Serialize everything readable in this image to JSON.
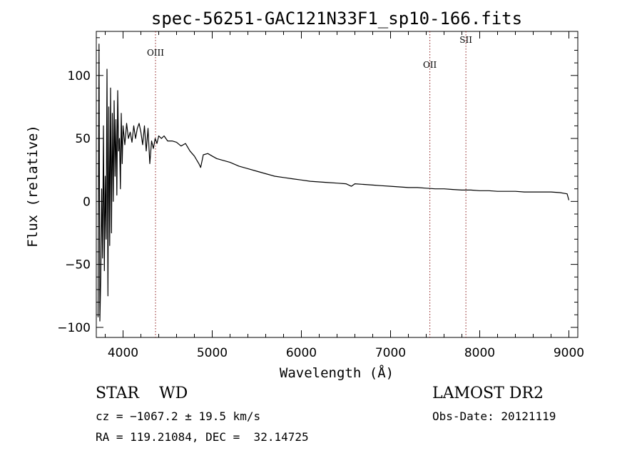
{
  "chart_data": {
    "type": "line",
    "title": "spec-56251-GAC121N33F1_sp10-166.fits",
    "xlabel": "Wavelength (Å)",
    "ylabel": "Flux (relative)",
    "xlim": [
      3700,
      9100
    ],
    "ylim": [
      -108,
      135
    ],
    "x_ticks": [
      4000,
      5000,
      6000,
      7000,
      8000,
      9000
    ],
    "y_ticks": [
      -100,
      -50,
      0,
      50,
      100
    ],
    "x_tick_labels": [
      "4000",
      "5000",
      "6000",
      "7000",
      "8000",
      "9000"
    ],
    "y_tick_labels": [
      "−100",
      "−50",
      "0",
      "50",
      "100"
    ],
    "grid": false,
    "line_color": "#000000",
    "marker_line_color": "#8b1a1a",
    "spectrum": {
      "x": [
        3720,
        3730,
        3740,
        3750,
        3760,
        3770,
        3780,
        3790,
        3800,
        3810,
        3820,
        3830,
        3840,
        3850,
        3860,
        3870,
        3880,
        3890,
        3900,
        3910,
        3920,
        3930,
        3940,
        3950,
        3960,
        3970,
        3980,
        3990,
        4000,
        4020,
        4040,
        4060,
        4080,
        4100,
        4120,
        4140,
        4160,
        4180,
        4200,
        4220,
        4240,
        4260,
        4280,
        4300,
        4320,
        4340,
        4360,
        4380,
        4400,
        4430,
        4460,
        4500,
        4550,
        4600,
        4650,
        4700,
        4750,
        4800,
        4850,
        4870,
        4900,
        4950,
        5000,
        5050,
        5100,
        5200,
        5300,
        5400,
        5500,
        5600,
        5700,
        5800,
        5900,
        6000,
        6100,
        6200,
        6300,
        6400,
        6500,
        6560,
        6600,
        6700,
        6800,
        6900,
        7000,
        7100,
        7200,
        7300,
        7400,
        7500,
        7600,
        7700,
        7800,
        7900,
        8000,
        8100,
        8200,
        8300,
        8400,
        8500,
        8600,
        8700,
        8800,
        8900,
        8980,
        9000
      ],
      "y": [
        -92,
        125,
        -95,
        -60,
        10,
        -45,
        60,
        -55,
        20,
        -30,
        105,
        -75,
        75,
        -35,
        90,
        -25,
        70,
        0,
        80,
        20,
        65,
        5,
        88,
        40,
        50,
        10,
        70,
        30,
        60,
        45,
        62,
        50,
        55,
        47,
        60,
        50,
        58,
        62,
        55,
        45,
        60,
        40,
        58,
        30,
        48,
        42,
        50,
        46,
        52,
        50,
        52,
        48,
        48,
        47,
        44,
        46,
        40,
        36,
        30,
        27,
        37,
        38,
        36,
        34,
        33,
        31,
        28,
        26,
        24,
        22,
        20,
        19,
        18,
        17,
        16,
        15.5,
        15,
        14.5,
        14,
        12,
        14,
        13.5,
        13,
        12.5,
        12,
        11.5,
        11,
        11,
        10.5,
        10,
        10,
        9.5,
        9,
        9,
        8.5,
        8.5,
        8,
        8,
        8,
        7.5,
        7.5,
        7.5,
        7.5,
        7,
        6,
        1
      ]
    },
    "lines": [
      {
        "label": "OIII",
        "x": 4364
      },
      {
        "label": "OII",
        "x": 7441
      },
      {
        "label": "SII",
        "x": 7845
      }
    ]
  },
  "info": {
    "class_text": "STAR    WD",
    "survey": "LAMOST DR2",
    "cz_text": "cz = −1067.2 ± 19.5 km/s",
    "obs_date": "Obs-Date: 20121119",
    "coords": "RA = 119.21084, DEC =  32.14725"
  }
}
